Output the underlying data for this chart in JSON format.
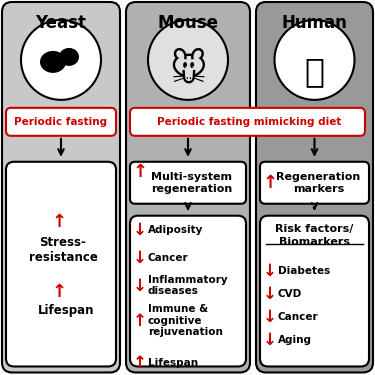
{
  "col1_title": "Yeast",
  "col2_title": "Mouse",
  "col3_title": "Human",
  "col1_bg": "#d0d0d0",
  "col2_bg": "#b8b8b8",
  "col3_bg": "#a0a0a0",
  "box_bg": "#ffffff",
  "fasting_text": "Periodic fasting",
  "fasting_mimicking_text": "Periodic fasting mimicking diet",
  "col1_box2": [
    "↑ Stress-\nresistance",
    "↑ Lifespan"
  ],
  "col2_box1": "Multi-system\nregeneration",
  "col2_box2": [
    "↓ Adiposity",
    "↓ Cancer",
    "↓ Inflammatory\ndiseases",
    "↑ Immune &\ncognitive\nrejuvenation",
    "↑ Lifespan"
  ],
  "col3_box1": "Regeneration\nmarkers",
  "col3_box2_title": "Risk factors/\nBiomarkers",
  "col3_box2": [
    "↓ Diabetes",
    "↓ CVD",
    "↓ Cancer",
    "↓ Aging"
  ],
  "red": "#cc0000",
  "black": "#000000",
  "white": "#ffffff"
}
